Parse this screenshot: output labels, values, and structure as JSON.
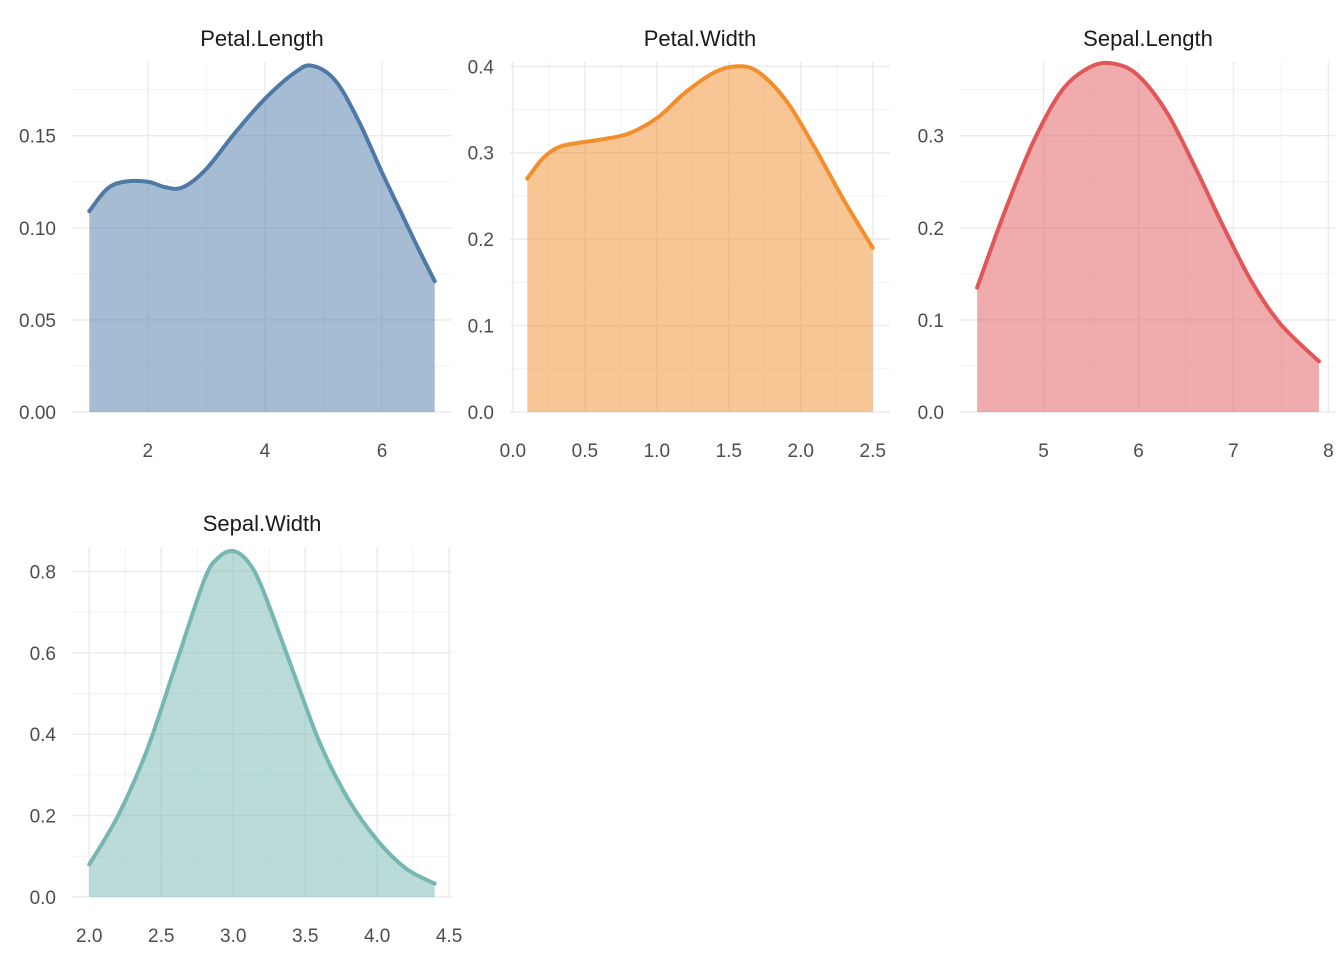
{
  "chart_data": [
    {
      "type": "area",
      "title": "Petal.Length",
      "color": "#4E79A7",
      "xlim": [
        0.705,
        7.195
      ],
      "ylim": [
        0,
        0.19
      ],
      "xticks": [
        2,
        4,
        6
      ],
      "xtick_labels": [
        "2",
        "4",
        "6"
      ],
      "yticks": [
        0,
        0.05,
        0.1,
        0.15
      ],
      "ytick_labels": [
        "0.00",
        "0.05",
        "0.10",
        "0.15"
      ],
      "x": [
        1.0,
        1.3,
        1.6,
        2.0,
        2.3,
        2.6,
        3.0,
        3.5,
        4.0,
        4.5,
        4.8,
        5.2,
        5.6,
        6.0,
        6.3,
        6.6,
        6.9
      ],
      "y": [
        0.109,
        0.121,
        0.125,
        0.125,
        0.122,
        0.122,
        0.132,
        0.152,
        0.17,
        0.184,
        0.188,
        0.18,
        0.158,
        0.13,
        0.11,
        0.09,
        0.071
      ]
    },
    {
      "type": "area",
      "title": "Petal.Width",
      "color": "#F28E2B",
      "xlim": [
        -0.02,
        2.62
      ],
      "ylim": [
        0,
        0.405
      ],
      "xticks": [
        0,
        0.5,
        1.0,
        1.5,
        2.0,
        2.5
      ],
      "xtick_labels": [
        "0.0",
        "0.5",
        "1.0",
        "1.5",
        "2.0",
        "2.5"
      ],
      "yticks": [
        0,
        0.1,
        0.2,
        0.3,
        0.4
      ],
      "ytick_labels": [
        "0.0",
        "0.1",
        "0.2",
        "0.3",
        "0.4"
      ],
      "x": [
        0.1,
        0.2,
        0.3,
        0.4,
        0.6,
        0.8,
        1.0,
        1.2,
        1.4,
        1.55,
        1.7,
        1.9,
        2.1,
        2.3,
        2.5
      ],
      "y": [
        0.27,
        0.292,
        0.305,
        0.31,
        0.315,
        0.322,
        0.34,
        0.37,
        0.393,
        0.4,
        0.394,
        0.36,
        0.305,
        0.245,
        0.19
      ]
    },
    {
      "type": "area",
      "title": "Sepal.Length",
      "color": "#E15759",
      "xlim": [
        4.12,
        8.08
      ],
      "ylim": [
        0,
        0.38
      ],
      "xticks": [
        5,
        6,
        7,
        8
      ],
      "xtick_labels": [
        "5",
        "6",
        "7",
        "8"
      ],
      "yticks": [
        0,
        0.1,
        0.2,
        0.3
      ],
      "ytick_labels": [
        "0.0",
        "0.1",
        "0.2",
        "0.3"
      ],
      "x": [
        4.3,
        4.6,
        4.9,
        5.2,
        5.5,
        5.75,
        6.0,
        6.3,
        6.6,
        6.9,
        7.2,
        7.5,
        7.9
      ],
      "y": [
        0.135,
        0.22,
        0.295,
        0.35,
        0.375,
        0.378,
        0.365,
        0.325,
        0.265,
        0.2,
        0.14,
        0.095,
        0.055
      ]
    },
    {
      "type": "area",
      "title": "Sepal.Width",
      "color": "#76B7B2",
      "xlim": [
        1.88,
        4.52
      ],
      "ylim": [
        0,
        0.86
      ],
      "xticks": [
        2.0,
        2.5,
        3.0,
        3.5,
        4.0,
        4.5
      ],
      "xtick_labels": [
        "2.0",
        "2.5",
        "3.0",
        "3.5",
        "4.0",
        "4.5"
      ],
      "yticks": [
        0,
        0.2,
        0.4,
        0.6,
        0.8
      ],
      "ytick_labels": [
        "0.0",
        "0.2",
        "0.4",
        "0.6",
        "0.8"
      ],
      "x": [
        2.0,
        2.2,
        2.4,
        2.6,
        2.8,
        2.9,
        3.0,
        3.1,
        3.2,
        3.4,
        3.6,
        3.8,
        4.0,
        4.2,
        4.4
      ],
      "y": [
        0.08,
        0.2,
        0.36,
        0.57,
        0.78,
        0.835,
        0.85,
        0.825,
        0.76,
        0.57,
        0.38,
        0.24,
        0.14,
        0.07,
        0.033
      ]
    }
  ]
}
